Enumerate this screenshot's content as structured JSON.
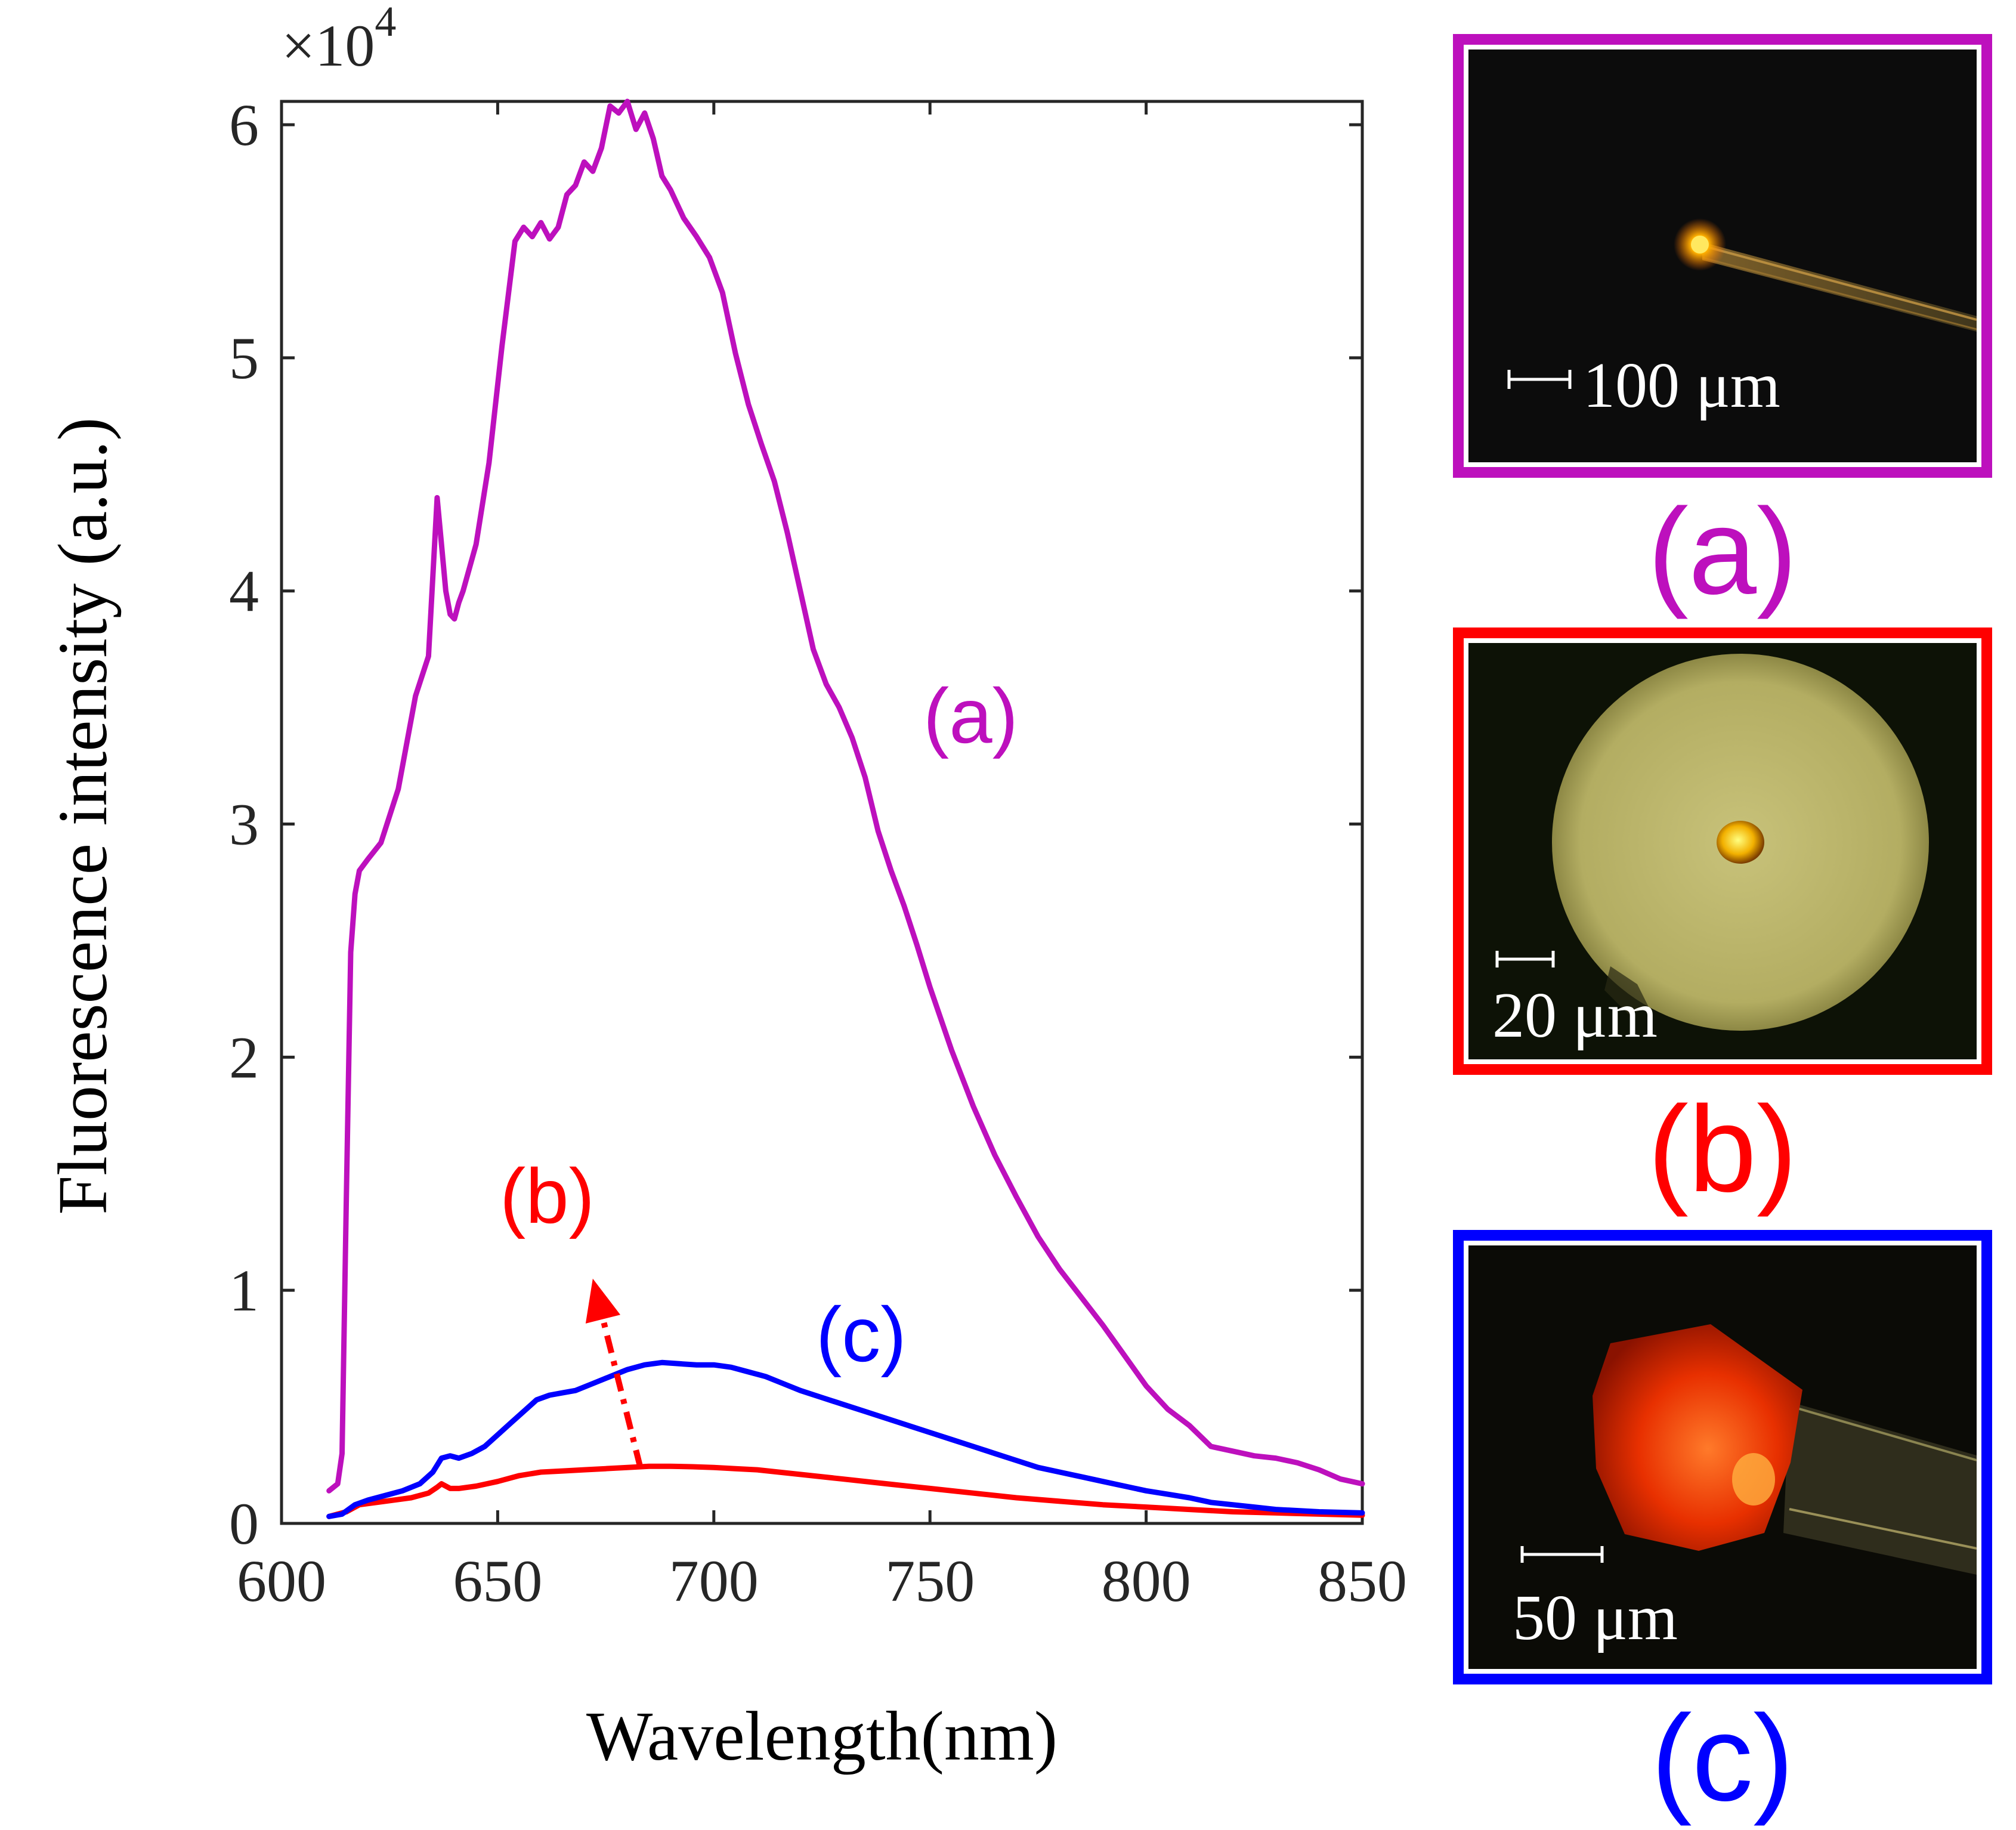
{
  "chart_data": {
    "type": "line",
    "title": "",
    "xlabel": "Wavelength(nm)",
    "ylabel": "Fluorescence intensity (a.u.)",
    "xlim": [
      600,
      850
    ],
    "ylim": [
      0,
      61000
    ],
    "y_multiplier": "×10",
    "y_multiplier_exp": "4",
    "grid": false,
    "x_ticks": [
      600,
      650,
      700,
      750,
      800,
      850
    ],
    "x_tick_labels": [
      "600",
      "650",
      "700",
      "750",
      "800",
      "850"
    ],
    "y_ticks": [
      0,
      10000,
      20000,
      30000,
      40000,
      50000,
      60000
    ],
    "y_tick_labels": [
      "0",
      "1",
      "2",
      "3",
      "4",
      "5",
      "6"
    ],
    "series": [
      {
        "name": "(a)",
        "color": "#bd10bd",
        "x": [
          611,
          613,
          614,
          615,
          616,
          617,
          618,
          620,
          623,
          627,
          631,
          634,
          636,
          637,
          638,
          639,
          640,
          641,
          642,
          645,
          648,
          651,
          654,
          656,
          658,
          660,
          662,
          664,
          666,
          668,
          670,
          672,
          674,
          676,
          678,
          680,
          682,
          684,
          686,
          688,
          690,
          693,
          696,
          699,
          702,
          705,
          708,
          711,
          714,
          717,
          720,
          723,
          726,
          729,
          732,
          735,
          738,
          741,
          744,
          747,
          750,
          755,
          760,
          765,
          770,
          775,
          780,
          785,
          790,
          795,
          800,
          805,
          810,
          815,
          820,
          825,
          830,
          835,
          840,
          845,
          850
        ],
        "values": [
          1400,
          1700,
          3000,
          14000,
          24500,
          27000,
          28000,
          28500,
          29200,
          31500,
          35500,
          37200,
          44000,
          42000,
          40000,
          39000,
          38800,
          39500,
          40000,
          42000,
          45500,
          50500,
          55000,
          55600,
          55200,
          55800,
          55100,
          55600,
          57000,
          57400,
          58400,
          58000,
          59000,
          60800,
          60500,
          61000,
          59800,
          60500,
          59400,
          57800,
          57200,
          56000,
          55200,
          54300,
          52800,
          50200,
          48000,
          46300,
          44700,
          42500,
          40000,
          37500,
          36000,
          35000,
          33700,
          32000,
          29700,
          28000,
          26500,
          24800,
          23000,
          20300,
          17900,
          15800,
          14000,
          12300,
          10900,
          9700,
          8500,
          7200,
          5900,
          4900,
          4200,
          3300,
          3100,
          2900,
          2800,
          2600,
          2300,
          1900,
          1700
        ]
      },
      {
        "name": "(b)",
        "color": "#ff0000",
        "x": [
          611,
          615,
          618,
          622,
          626,
          630,
          634,
          636,
          637,
          639,
          641,
          645,
          650,
          655,
          660,
          665,
          670,
          675,
          680,
          685,
          690,
          695,
          700,
          705,
          710,
          715,
          720,
          730,
          740,
          750,
          760,
          770,
          780,
          790,
          800,
          810,
          820,
          830,
          840,
          850
        ],
        "values": [
          300,
          500,
          800,
          900,
          1000,
          1100,
          1300,
          1550,
          1700,
          1500,
          1500,
          1600,
          1800,
          2050,
          2200,
          2250,
          2300,
          2350,
          2400,
          2450,
          2450,
          2430,
          2400,
          2350,
          2300,
          2200,
          2100,
          1900,
          1700,
          1500,
          1300,
          1100,
          950,
          800,
          700,
          600,
          500,
          450,
          400,
          350
        ]
      },
      {
        "name": "(c)",
        "color": "#0000ff",
        "x": [
          611,
          614,
          617,
          620,
          624,
          628,
          632,
          635,
          637,
          639,
          641,
          644,
          647,
          650,
          653,
          656,
          659,
          662,
          665,
          668,
          672,
          676,
          680,
          684,
          688,
          692,
          696,
          700,
          704,
          708,
          712,
          716,
          720,
          725,
          730,
          735,
          740,
          745,
          750,
          755,
          760,
          765,
          770,
          775,
          780,
          785,
          790,
          795,
          800,
          805,
          810,
          815,
          820,
          825,
          830,
          840,
          850
        ],
        "values": [
          300,
          400,
          800,
          1000,
          1200,
          1400,
          1700,
          2200,
          2800,
          2900,
          2800,
          3000,
          3300,
          3800,
          4300,
          4800,
          5300,
          5500,
          5600,
          5700,
          6000,
          6300,
          6600,
          6800,
          6900,
          6850,
          6800,
          6800,
          6700,
          6500,
          6300,
          6000,
          5700,
          5400,
          5100,
          4800,
          4500,
          4200,
          3900,
          3600,
          3300,
          3000,
          2700,
          2400,
          2200,
          2000,
          1800,
          1600,
          1400,
          1250,
          1100,
          900,
          800,
          700,
          600,
          500,
          450
        ]
      }
    ],
    "curve_labels": [
      "(a)",
      "(b)",
      "(c)"
    ],
    "annotations": [
      {
        "type": "dashed-arrow",
        "color": "#ff0000",
        "from": [
          683,
          2400
        ],
        "to": [
          672,
          10500
        ]
      }
    ]
  },
  "insets": [
    {
      "label": "(a)",
      "color": "#bd10bd",
      "scale_bar_text": "100 μm"
    },
    {
      "label": "(b)",
      "color": "#ff0000",
      "scale_bar_text": "20 μm"
    },
    {
      "label": "(c)",
      "color": "#0000ff",
      "scale_bar_text": "50 μm"
    }
  ]
}
